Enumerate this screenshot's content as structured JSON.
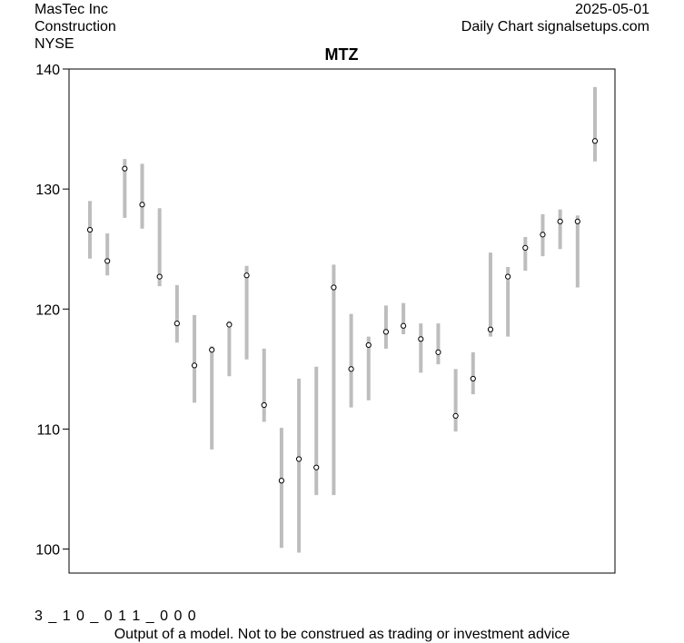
{
  "header": {
    "company": "MasTec Inc",
    "sector": "Construction",
    "exchange": "NYSE",
    "date": "2025-05-01",
    "source": "Daily Chart signalsetups.com"
  },
  "footer": {
    "code": "3 _ 1 0 _ 0 1 1 _ 0 0 0",
    "disclaimer": "Output of a model. Not to be construed as trading or investment advice"
  },
  "colors": {
    "bar": "#bdbdbd",
    "marker_fill": "#ffffff",
    "marker_stroke": "#000000",
    "frame": "#000000"
  },
  "chart_data": {
    "type": "range-bar",
    "title": "MTZ",
    "xlabel": "",
    "ylabel": "",
    "ylim": [
      98,
      140
    ],
    "yticks": [
      100,
      110,
      120,
      130,
      140
    ],
    "grid": false,
    "legend": "none",
    "series": [
      {
        "low": [
          124.2,
          122.8,
          127.6,
          126.7,
          121.9,
          117.2,
          112.2,
          108.3,
          114.4,
          115.8,
          110.6,
          100.1,
          99.7,
          104.5,
          104.5,
          111.8,
          112.4,
          116.7,
          117.9,
          114.7,
          115.4,
          109.8,
          112.9,
          117.7,
          117.7,
          123.2,
          124.4,
          125.0,
          121.8,
          132.3
        ],
        "high": [
          129.0,
          126.3,
          132.5,
          132.1,
          128.4,
          122.0,
          119.5,
          116.9,
          119.0,
          123.6,
          116.7,
          110.1,
          114.2,
          115.2,
          123.7,
          119.6,
          117.7,
          120.3,
          120.5,
          118.8,
          118.8,
          115.0,
          116.4,
          124.7,
          123.5,
          126.0,
          127.9,
          128.3,
          127.8,
          138.5
        ],
        "close": [
          126.6,
          124.0,
          131.7,
          128.7,
          122.7,
          118.8,
          115.3,
          116.6,
          118.7,
          122.8,
          112.0,
          105.7,
          107.5,
          106.8,
          121.8,
          115.0,
          117.0,
          118.1,
          118.6,
          117.5,
          116.4,
          111.1,
          114.2,
          118.3,
          122.7,
          125.1,
          126.2,
          127.3,
          127.3,
          134.0
        ]
      }
    ]
  }
}
